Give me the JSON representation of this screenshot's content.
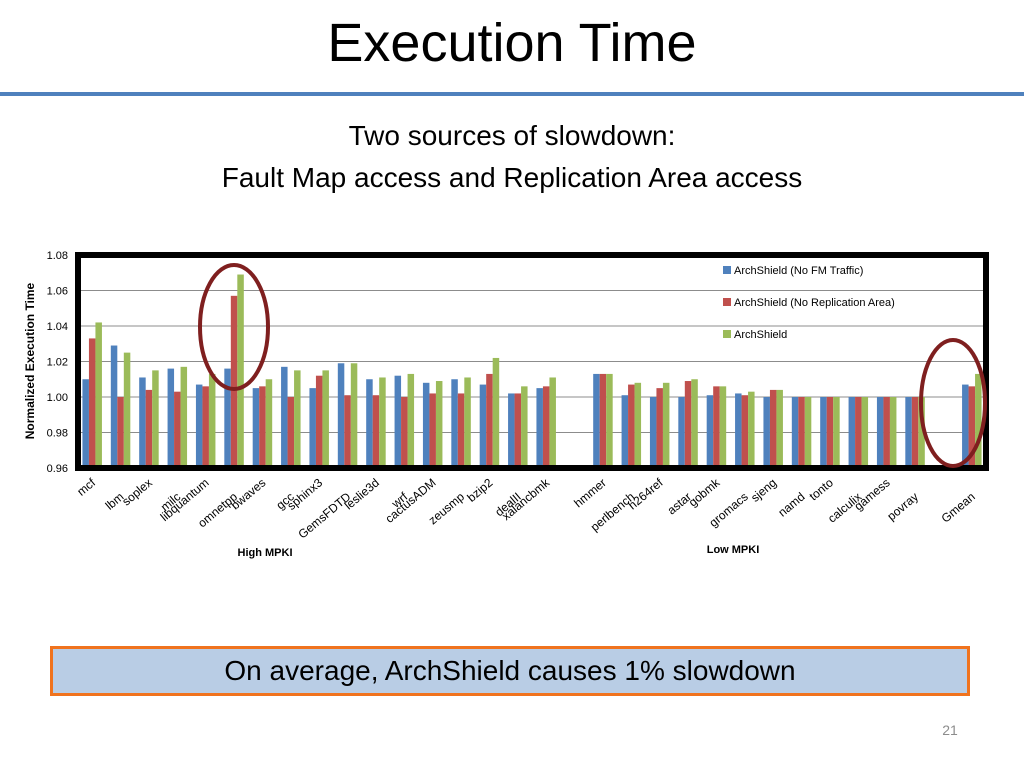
{
  "slide": {
    "title": "Execution Time",
    "subtitle_line1": "Two sources of slowdown:",
    "subtitle_line2": "Fault Map access and Replication Area access",
    "conclusion": "On average, ArchShield causes 1% slowdown",
    "page_number": "21",
    "colors": {
      "title_rule": "#4f81bd",
      "box_fill": "#b9cde5",
      "box_border": "#f0731e",
      "highlight_circle": "#7f1f1f"
    }
  },
  "chart_data": {
    "type": "bar",
    "ylabel": "Normalized Execution Time",
    "xlabel": "",
    "ylim": [
      0.96,
      1.08
    ],
    "yticks": [
      "0.96",
      "0.98",
      "1.00",
      "1.02",
      "1.04",
      "1.06",
      "1.08"
    ],
    "grid": true,
    "legend_position": "top-right",
    "group_labels": [
      "High MPKI",
      "Low MPKI"
    ],
    "categories": [
      "mcf",
      "lbm",
      "soplex",
      "milc",
      "libquantum",
      "omnetpp",
      "bwaves",
      "gcc",
      "sphinx3",
      "GemsFDTD",
      "leslie3d",
      "wrf",
      "cactusADM",
      "zeusmp",
      "bzip2",
      "dealII",
      "xalancbmk",
      "",
      "hmmer",
      "perlbench",
      "h264ref",
      "astar",
      "gobmk",
      "gromacs",
      "sjeng",
      "namd",
      "tonto",
      "calculix",
      "gamess",
      "povray",
      "",
      "Gmean"
    ],
    "series": [
      {
        "name": "ArchShield (No FM Traffic)",
        "color": "#4f81bd",
        "values": [
          1.01,
          1.029,
          1.011,
          1.016,
          1.007,
          1.016,
          1.005,
          1.017,
          1.005,
          1.019,
          1.01,
          1.012,
          1.008,
          1.01,
          1.007,
          1.002,
          1.005,
          null,
          1.013,
          1.001,
          1.0,
          1.0,
          1.001,
          1.002,
          1.0,
          1.0,
          1.0,
          1.0,
          1.0,
          1.0,
          null,
          1.007
        ]
      },
      {
        "name": "ArchShield (No Replication Area)",
        "color": "#c0504d",
        "values": [
          1.033,
          1.0,
          1.004,
          1.003,
          1.006,
          1.057,
          1.006,
          1.0,
          1.012,
          1.001,
          1.001,
          1.0,
          1.002,
          1.002,
          1.013,
          1.002,
          1.006,
          null,
          1.013,
          1.007,
          1.005,
          1.009,
          1.006,
          1.001,
          1.004,
          1.0,
          1.0,
          1.0,
          1.0,
          1.0,
          null,
          1.006
        ]
      },
      {
        "name": "ArchShield",
        "color": "#9bbb59",
        "values": [
          1.042,
          1.025,
          1.015,
          1.017,
          1.013,
          1.069,
          1.01,
          1.015,
          1.015,
          1.019,
          1.011,
          1.013,
          1.009,
          1.011,
          1.022,
          1.006,
          1.011,
          null,
          1.013,
          1.008,
          1.008,
          1.01,
          1.006,
          1.003,
          1.004,
          1.0,
          1.0,
          1.0,
          1.0,
          1.0,
          null,
          1.013
        ]
      }
    ]
  }
}
